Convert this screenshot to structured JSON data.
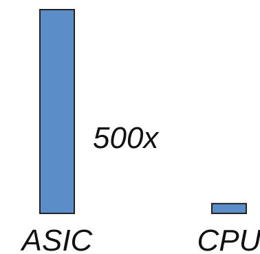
{
  "chart_data": {
    "type": "bar",
    "categories": [
      "ASIC",
      "CPU"
    ],
    "values": [
      500,
      24
    ],
    "annotation": "500x",
    "title": "",
    "xlabel": "",
    "ylabel": "",
    "ylim": [
      0,
      500
    ],
    "grid": false,
    "legend": "none",
    "bar_color": "#5b8ec9",
    "bar_edge_color": "#222222"
  }
}
